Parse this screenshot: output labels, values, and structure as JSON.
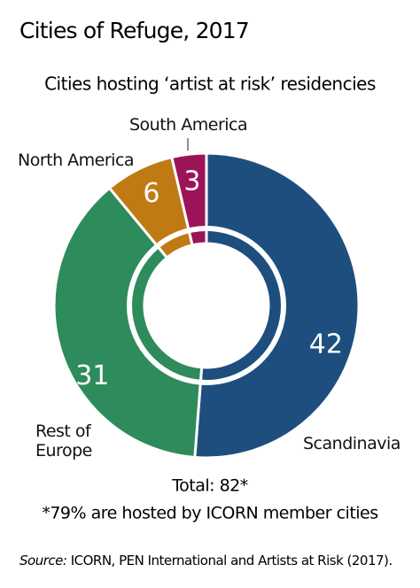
{
  "chart_data": {
    "type": "donut",
    "title": "Cities of Refuge, 2017",
    "subtitle": "Cities hosting ‘artist at risk’ residencies",
    "categories": [
      "Scandinavia",
      "Rest of Europe",
      "North America",
      "South America"
    ],
    "values": [
      42,
      31,
      6,
      3
    ],
    "colors": [
      "#1d4e7e",
      "#2e8b5b",
      "#c07a14",
      "#9c1458"
    ],
    "total": "Total: 82*",
    "note": "*79% are hosted by ICORN member cities",
    "source_label": "Source:",
    "source_text": "ICORN, PEN International and Artists at Risk (2017)."
  }
}
